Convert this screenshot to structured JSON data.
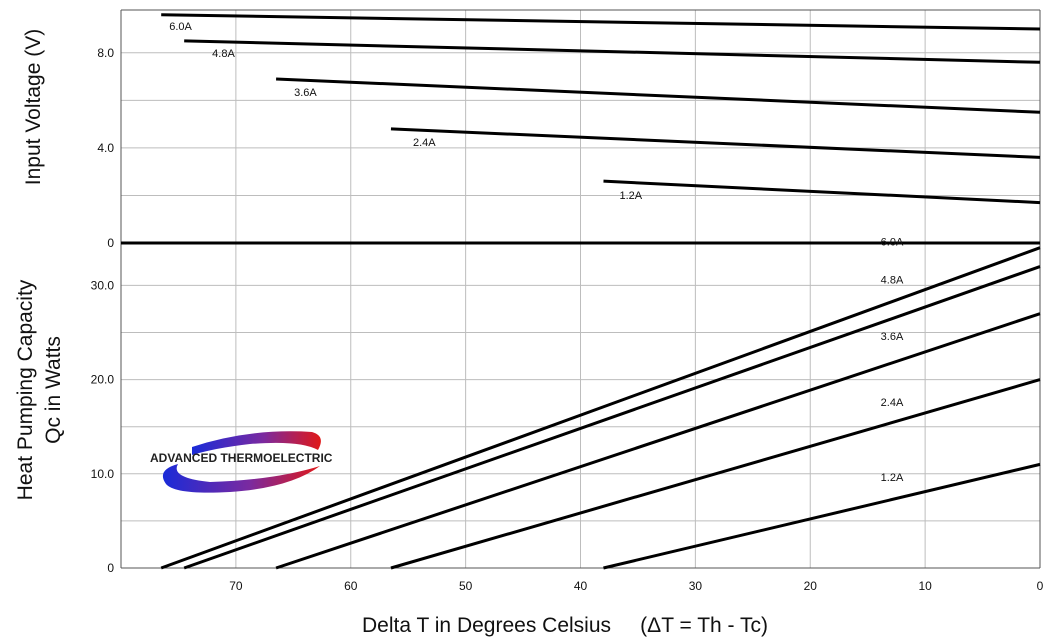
{
  "chart_data": [
    {
      "type": "line",
      "ylabel": "Input Voltage (V)",
      "xlim": [
        80,
        0
      ],
      "ylim": [
        0,
        9.8
      ],
      "grid": true,
      "x_ticks": [
        "70",
        "60",
        "50",
        "40",
        "30",
        "20",
        "10",
        "0"
      ],
      "y_ticks": [
        "0",
        "4.0",
        "8.0"
      ],
      "series": [
        {
          "name": "6.0A",
          "x": [
            76.5,
            0
          ],
          "y": [
            9.6,
            9.0
          ]
        },
        {
          "name": "4.8A",
          "x": [
            74.5,
            0
          ],
          "y": [
            8.5,
            7.6
          ]
        },
        {
          "name": "3.6A",
          "x": [
            66.5,
            0
          ],
          "y": [
            6.9,
            5.5
          ]
        },
        {
          "name": "2.4A",
          "x": [
            56.5,
            0
          ],
          "y": [
            4.8,
            3.6
          ]
        },
        {
          "name": "1.2A",
          "x": [
            38,
            0
          ],
          "y": [
            2.6,
            1.7
          ]
        }
      ]
    },
    {
      "type": "line",
      "ylabel": "Heat Pumping Capacity Qc in Watts",
      "xlabel": "Delta T in Degrees Celsius     (ΔT = Th - Tc)",
      "xlim": [
        80,
        0
      ],
      "ylim": [
        0,
        34.5
      ],
      "grid": true,
      "x_ticks": [
        "70",
        "60",
        "50",
        "40",
        "30",
        "20",
        "10",
        "0"
      ],
      "y_ticks": [
        "0",
        "10.0",
        "20.0",
        "30.0"
      ],
      "series": [
        {
          "name": "6.0A",
          "x": [
            76.5,
            0
          ],
          "y": [
            0,
            34.0
          ]
        },
        {
          "name": "4.8A",
          "x": [
            74.5,
            0
          ],
          "y": [
            0,
            32.0
          ]
        },
        {
          "name": "3.6A",
          "x": [
            66.5,
            0
          ],
          "y": [
            0,
            27.0
          ]
        },
        {
          "name": "2.4A",
          "x": [
            56.5,
            0
          ],
          "y": [
            0,
            20.0
          ]
        },
        {
          "name": "1.2A",
          "x": [
            38,
            0
          ],
          "y": [
            0,
            11.0
          ]
        }
      ]
    }
  ],
  "logo": {
    "text": "ADVANCED THERMOELECTRIC"
  },
  "colors": {
    "line": "#000000",
    "grid": "#bdbdbd",
    "logo_blue": "#1a2bd8",
    "logo_red": "#e01818"
  }
}
